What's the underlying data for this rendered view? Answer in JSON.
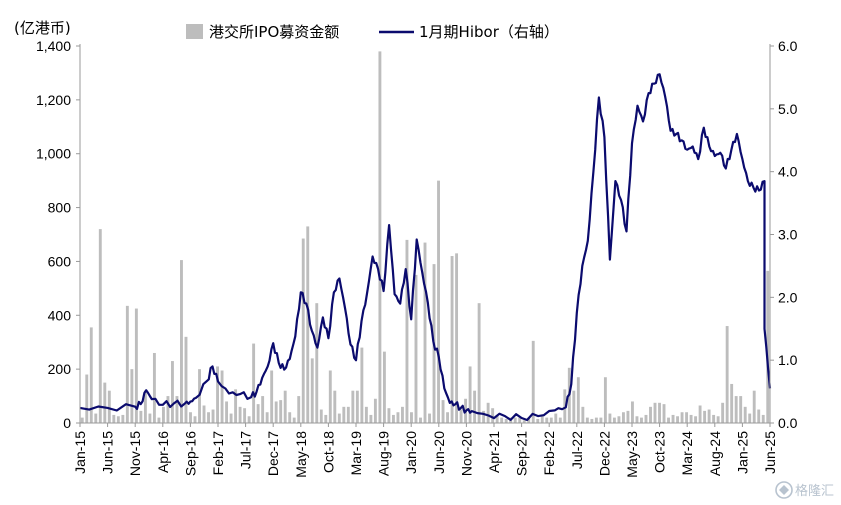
{
  "chart_data": {
    "type": "bar+line",
    "y_left_unit": "(亿港币)",
    "y_left_ticks": [
      "0",
      "200",
      "400",
      "600",
      "800",
      "1,000",
      "1,200",
      "1,400"
    ],
    "y_left_lim": [
      0,
      1400
    ],
    "y_right_ticks": [
      "0.0",
      "1.0",
      "2.0",
      "3.0",
      "4.0",
      "5.0",
      "6.0"
    ],
    "y_right_lim": [
      0,
      6
    ],
    "x_range": [
      "2015-01",
      "2025-06"
    ],
    "x_ticks": [
      "Jan-15",
      "Jun-15",
      "Nov-15",
      "Apr-16",
      "Sep-16",
      "Feb-17",
      "Jul-17",
      "Dec-17",
      "May-18",
      "Oct-18",
      "Mar-19",
      "Aug-19",
      "Jan-20",
      "Jun-20",
      "Nov-20",
      "Apr-21",
      "Sep-21",
      "Feb-22",
      "Jul-22",
      "Dec-22",
      "May-23",
      "Oct-23",
      "Mar-24",
      "Aug-24",
      "Jan-25",
      "Jun-25"
    ],
    "legend": [
      "港交所IPO募资金额",
      "1月期Hibor（右轴）"
    ],
    "series": [
      {
        "name": "港交所IPO募资金额",
        "type": "bar",
        "axis": "left",
        "color": "#bdbdbd",
        "values": [
          20,
          180,
          355,
          35,
          720,
          150,
          120,
          30,
          25,
          30,
          435,
          200,
          425,
          45,
          120,
          35,
          260,
          20,
          60,
          100,
          230,
          100,
          605,
          320,
          40,
          25,
          200,
          65,
          40,
          50,
          210,
          195,
          80,
          35,
          125,
          60,
          55,
          25,
          295,
          70,
          100,
          40,
          195,
          80,
          85,
          120,
          40,
          20,
          100,
          685,
          730,
          240,
          445,
          50,
          30,
          195,
          120,
          35,
          60,
          60,
          120,
          120,
          280,
          60,
          30,
          90,
          1380,
          265,
          55,
          30,
          40,
          60,
          680,
          40,
          550,
          20,
          670,
          35,
          590,
          900,
          85,
          40,
          620,
          630,
          50,
          90,
          210,
          120,
          445,
          45,
          75,
          55,
          30,
          20,
          15,
          20,
          20,
          20,
          10,
          20,
          305,
          15,
          30,
          20,
          20,
          35,
          20,
          125,
          205,
          120,
          170,
          60,
          20,
          15,
          20,
          20,
          170,
          35,
          20,
          25,
          40,
          45,
          80,
          25,
          20,
          30,
          60,
          75,
          75,
          70,
          20,
          30,
          25,
          40,
          40,
          30,
          25,
          65,
          45,
          50,
          30,
          25,
          75,
          360,
          145,
          100,
          100,
          60,
          35,
          120,
          50,
          30,
          565
        ]
      },
      {
        "name": "1月期Hibor（右轴）",
        "type": "line",
        "axis": "right",
        "color": "#0b0b6e",
        "points": [
          [
            "2015-01",
            0.24
          ],
          [
            "2015-06",
            0.24
          ],
          [
            "2015-11",
            0.26
          ],
          [
            "2015-12",
            0.3
          ],
          [
            "2016-01",
            0.52
          ],
          [
            "2016-02",
            0.38
          ],
          [
            "2016-04",
            0.29
          ],
          [
            "2016-06",
            0.31
          ],
          [
            "2016-08",
            0.31
          ],
          [
            "2016-09",
            0.34
          ],
          [
            "2016-10",
            0.4
          ],
          [
            "2016-12",
            0.67
          ],
          [
            "2017-01",
            0.9
          ],
          [
            "2017-02",
            0.66
          ],
          [
            "2017-04",
            0.47
          ],
          [
            "2017-06",
            0.46
          ],
          [
            "2017-08",
            0.41
          ],
          [
            "2017-09",
            0.5
          ],
          [
            "2017-10",
            0.72
          ],
          [
            "2017-11",
            0.9
          ],
          [
            "2017-12",
            1.27
          ],
          [
            "2018-01",
            0.96
          ],
          [
            "2018-02",
            0.85
          ],
          [
            "2018-03",
            1.02
          ],
          [
            "2018-04",
            1.38
          ],
          [
            "2018-05",
            2.08
          ],
          [
            "2018-06",
            1.9
          ],
          [
            "2018-07",
            1.47
          ],
          [
            "2018-08",
            1.2
          ],
          [
            "2018-09",
            1.68
          ],
          [
            "2018-10",
            1.35
          ],
          [
            "2018-11",
            2.08
          ],
          [
            "2018-12",
            2.3
          ],
          [
            "2019-01",
            1.83
          ],
          [
            "2019-02",
            1.25
          ],
          [
            "2019-03",
            1.0
          ],
          [
            "2019-04",
            1.62
          ],
          [
            "2019-05",
            2.06
          ],
          [
            "2019-06",
            2.65
          ],
          [
            "2019-07",
            2.45
          ],
          [
            "2019-08",
            2.1
          ],
          [
            "2019-09",
            3.15
          ],
          [
            "2019-10",
            2.05
          ],
          [
            "2019-11",
            1.9
          ],
          [
            "2019-12",
            2.45
          ],
          [
            "2020-01",
            1.65
          ],
          [
            "2020-02",
            2.92
          ],
          [
            "2020-03",
            2.4
          ],
          [
            "2020-04",
            1.92
          ],
          [
            "2020-05",
            1.3
          ],
          [
            "2020-06",
            1.05
          ],
          [
            "2020-07",
            0.55
          ],
          [
            "2020-08",
            0.32
          ],
          [
            "2020-09",
            0.3
          ],
          [
            "2020-10",
            0.24
          ],
          [
            "2020-11",
            0.2
          ],
          [
            "2020-12",
            0.19
          ],
          [
            "2021-03",
            0.12
          ],
          [
            "2021-06",
            0.11
          ],
          [
            "2021-09",
            0.08
          ],
          [
            "2021-12",
            0.11
          ],
          [
            "2022-03",
            0.2
          ],
          [
            "2022-05",
            0.25
          ],
          [
            "2022-06",
            0.62
          ],
          [
            "2022-07",
            1.75
          ],
          [
            "2022-08",
            2.5
          ],
          [
            "2022-09",
            2.9
          ],
          [
            "2022-10",
            4.0
          ],
          [
            "2022-11",
            5.18
          ],
          [
            "2022-12",
            4.55
          ],
          [
            "2023-01",
            2.6
          ],
          [
            "2023-02",
            3.85
          ],
          [
            "2023-03",
            3.55
          ],
          [
            "2023-04",
            3.05
          ],
          [
            "2023-05",
            4.45
          ],
          [
            "2023-06",
            5.05
          ],
          [
            "2023-07",
            4.8
          ],
          [
            "2023-08",
            5.25
          ],
          [
            "2023-09",
            5.4
          ],
          [
            "2023-10",
            5.55
          ],
          [
            "2023-11",
            5.2
          ],
          [
            "2023-12",
            4.65
          ],
          [
            "2024-01",
            4.6
          ],
          [
            "2024-02",
            4.5
          ],
          [
            "2024-03",
            4.35
          ],
          [
            "2024-04",
            4.4
          ],
          [
            "2024-05",
            4.2
          ],
          [
            "2024-06",
            4.7
          ],
          [
            "2024-07",
            4.4
          ],
          [
            "2024-08",
            4.25
          ],
          [
            "2024-09",
            4.3
          ],
          [
            "2024-10",
            4.05
          ],
          [
            "2024-11",
            4.35
          ],
          [
            "2024-12",
            4.6
          ],
          [
            "2025-01",
            4.2
          ],
          [
            "2025-02",
            3.85
          ],
          [
            "2025-03",
            3.75
          ],
          [
            "2025-04",
            3.7
          ],
          [
            "2025-05",
            3.85
          ],
          [
            "2025-05",
            1.5
          ],
          [
            "2025-06",
            0.55
          ]
        ]
      }
    ],
    "grid": false,
    "legend_position": "top"
  },
  "watermark": {
    "text": "格隆汇"
  },
  "icons": {
    "watermark_logo": "gelonghui-logo-icon"
  }
}
